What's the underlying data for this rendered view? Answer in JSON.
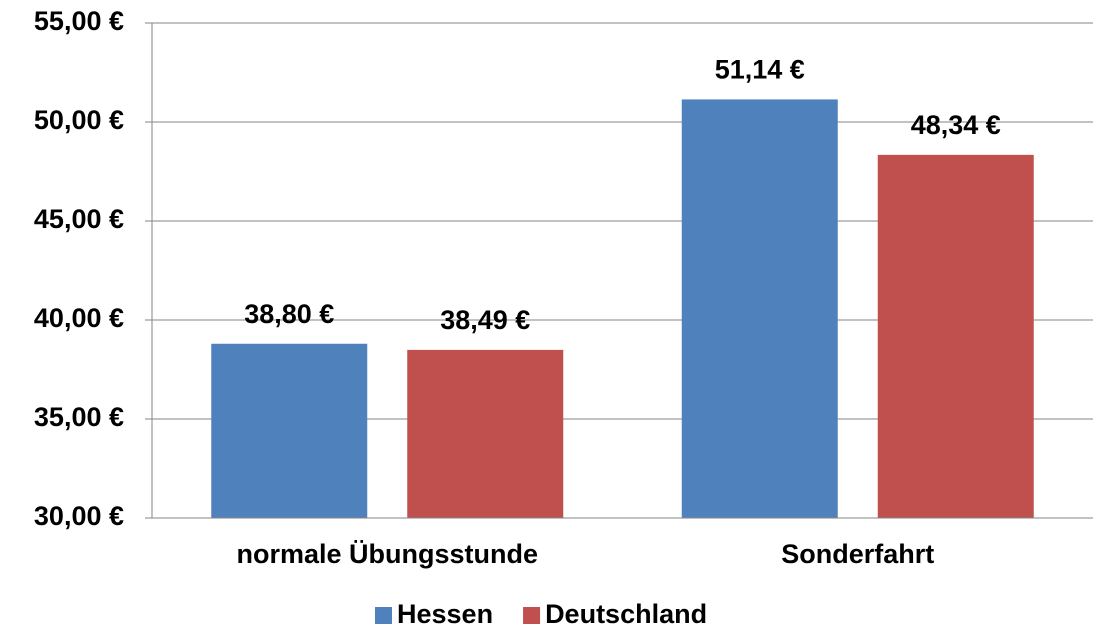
{
  "chart_data": {
    "type": "bar",
    "categories": [
      "normale Übungsstunde",
      "Sonderfahrt"
    ],
    "series": [
      {
        "name": "Hessen",
        "color": "#4f81bd",
        "values": [
          38.8,
          51.14
        ],
        "value_labels": [
          "38,80 €",
          "51,14 €"
        ]
      },
      {
        "name": "Deutschland",
        "color": "#c0504d",
        "values": [
          38.49,
          48.34
        ],
        "value_labels": [
          "38,49 €",
          "48,34 €"
        ]
      }
    ],
    "ylim": [
      30,
      55
    ],
    "yticks": [
      {
        "value": 30,
        "label": "30,00 €"
      },
      {
        "value": 35,
        "label": "35,00 €"
      },
      {
        "value": 40,
        "label": "40,00 €"
      },
      {
        "value": 45,
        "label": "45,00 €"
      },
      {
        "value": 50,
        "label": "50,00 €"
      },
      {
        "value": 55,
        "label": "55,00 €"
      }
    ],
    "grid": true,
    "legend": "bottom"
  }
}
